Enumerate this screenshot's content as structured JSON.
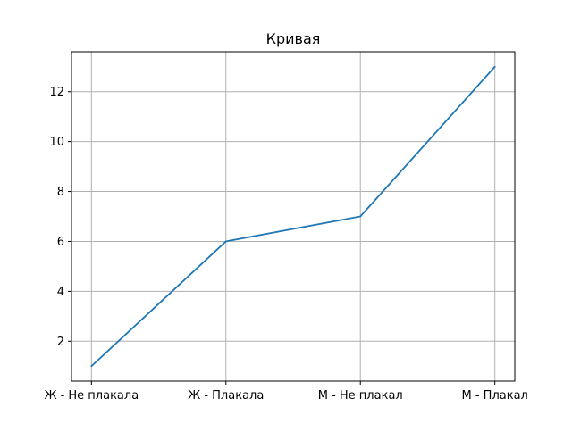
{
  "chart_data": {
    "type": "line",
    "title": "Кривая",
    "xlabel": "",
    "ylabel": "",
    "categories": [
      "Ж - Не плакала",
      "Ж - Плакала",
      "М - Не плакал",
      "М - Плакал"
    ],
    "series": [
      {
        "values": [
          1,
          6,
          7,
          13
        ],
        "color": "#1f77b4"
      }
    ],
    "ylim": [
      0.4,
      13.6
    ],
    "yticks": [
      2,
      4,
      6,
      8,
      10,
      12
    ],
    "grid": true
  }
}
